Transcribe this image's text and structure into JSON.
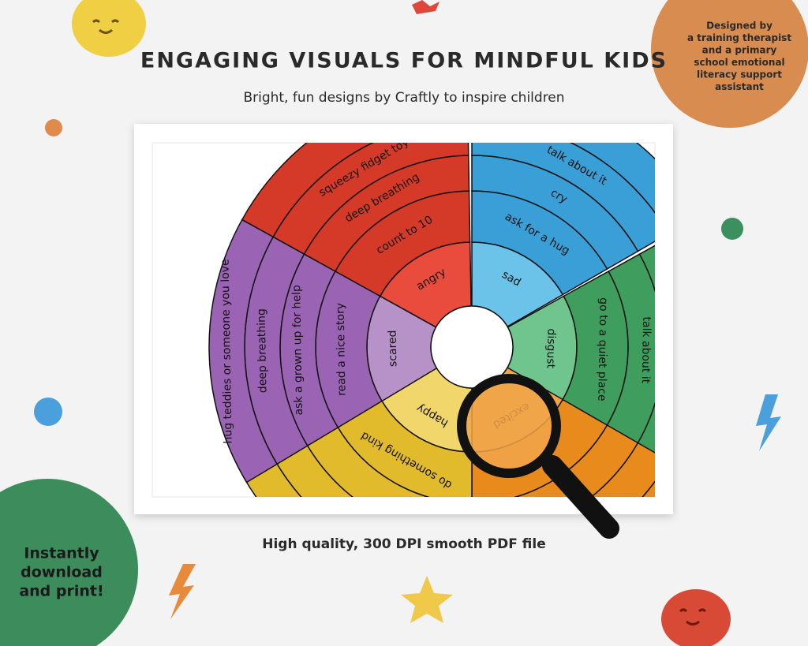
{
  "header": {
    "title": "ENGAGING VISUALS FOR MINDFUL KIDS",
    "subtitle": "Bright, fun designs by Craftly to inspire children"
  },
  "badge": {
    "lines": [
      "Designed by",
      "a training therapist",
      "and a primary",
      "school emotional",
      "literacy support",
      "assistant"
    ]
  },
  "wheel": {
    "sectors": [
      {
        "emotion": "angry",
        "strategies": [
          "count to 10",
          "deep breathing",
          "squeezy fidget toy"
        ]
      },
      {
        "emotion": "sad",
        "strategies": [
          "ask for a hug",
          "cry",
          "talk about it"
        ]
      },
      {
        "emotion": "disgust",
        "strategies": [
          "go to a quiet place",
          "talk about it"
        ]
      },
      {
        "emotion": "excited",
        "strategies": []
      },
      {
        "emotion": "happy",
        "strategies": [
          "do something kind"
        ]
      },
      {
        "emotion": "scared",
        "strategies": [
          "read a nice story",
          "ask a grown up for help",
          "deep breathing",
          "hug teddies or someone you love"
        ]
      }
    ]
  },
  "callout": {
    "lines": [
      "Instantly",
      "download",
      "and print!"
    ]
  },
  "footer": "High quality, 300 DPI smooth PDF file"
}
